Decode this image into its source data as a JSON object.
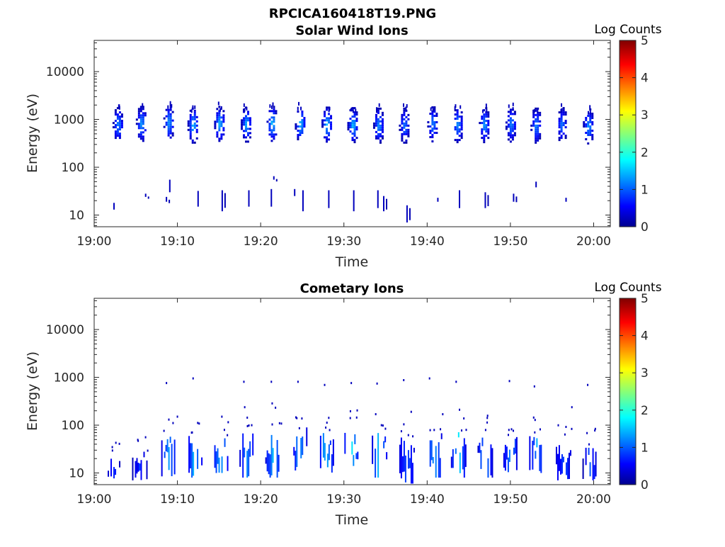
{
  "page": {
    "file_title": "RPCICA160418T19.PNG"
  },
  "colorbar": {
    "label": "Log Counts",
    "ticks": [
      "0",
      "1",
      "2",
      "3",
      "4",
      "5"
    ],
    "range": [
      0,
      5
    ],
    "colormap": "jet"
  },
  "chart_data": [
    {
      "type": "heatmap",
      "title": "Solar Wind Ions",
      "xlabel": "Time",
      "ylabel": "Energy (eV)",
      "x_ticks": [
        "19:00",
        "19:10",
        "19:20",
        "19:30",
        "19:40",
        "19:50",
        "20:00"
      ],
      "y_ticks": [
        "10",
        "100",
        "1000",
        "10000"
      ],
      "y_scale": "log",
      "xlim_minutes": [
        0,
        62
      ],
      "ylim_eV": [
        5.7,
        45000
      ],
      "colorbar_label": "Log Counts",
      "clim": [
        0,
        5
      ],
      "clusters": [
        {
          "t": 2.8,
          "e": 800,
          "value": 1.3
        },
        {
          "t": 5.6,
          "e": 850,
          "value": 1.4
        },
        {
          "t": 8.9,
          "e": 900,
          "value": 1.4
        },
        {
          "t": 11.8,
          "e": 780,
          "value": 1.6
        },
        {
          "t": 15.0,
          "e": 850,
          "value": 1.6
        },
        {
          "t": 18.2,
          "e": 820,
          "value": 1.5
        },
        {
          "t": 21.3,
          "e": 850,
          "value": 1.6
        },
        {
          "t": 24.7,
          "e": 830,
          "value": 1.6
        },
        {
          "t": 27.9,
          "e": 820,
          "value": 1.6
        },
        {
          "t": 31.0,
          "e": 800,
          "value": 1.6
        },
        {
          "t": 34.1,
          "e": 780,
          "value": 1.4
        },
        {
          "t": 37.2,
          "e": 780,
          "value": 1.2
        },
        {
          "t": 40.6,
          "e": 830,
          "value": 1.3
        },
        {
          "t": 43.6,
          "e": 800,
          "value": 1.4
        },
        {
          "t": 46.8,
          "e": 800,
          "value": 1.4
        },
        {
          "t": 50.0,
          "e": 820,
          "value": 1.3
        },
        {
          "t": 53.0,
          "e": 780,
          "value": 1.3
        },
        {
          "t": 56.1,
          "e": 800,
          "value": 1.2
        },
        {
          "t": 59.3,
          "e": 750,
          "value": 1.4
        }
      ],
      "low_energy_streaks": [
        {
          "t": 2.3,
          "e1": 13,
          "e2": 18
        },
        {
          "t": 6.1,
          "e1": 24,
          "e2": 28
        },
        {
          "t": 8.6,
          "e1": 19,
          "e2": 24
        },
        {
          "t": 9.0,
          "e1": 30,
          "e2": 55
        },
        {
          "t": 12.4,
          "e1": 15,
          "e2": 32
        },
        {
          "t": 15.3,
          "e1": 12,
          "e2": 33
        },
        {
          "t": 18.5,
          "e1": 15,
          "e2": 33
        },
        {
          "t": 21.2,
          "e1": 15,
          "e2": 35
        },
        {
          "t": 21.5,
          "e1": 55,
          "e2": 65
        },
        {
          "t": 24.0,
          "e1": 25,
          "e2": 35
        },
        {
          "t": 25.0,
          "e1": 12,
          "e2": 33
        },
        {
          "t": 28.1,
          "e1": 14,
          "e2": 33
        },
        {
          "t": 31.1,
          "e1": 12,
          "e2": 33
        },
        {
          "t": 34.0,
          "e1": 14,
          "e2": 33
        },
        {
          "t": 34.7,
          "e1": 12,
          "e2": 25
        },
        {
          "t": 37.5,
          "e1": 7,
          "e2": 16
        },
        {
          "t": 41.2,
          "e1": 19,
          "e2": 23
        },
        {
          "t": 43.8,
          "e1": 14,
          "e2": 33
        },
        {
          "t": 46.9,
          "e1": 14,
          "e2": 30
        },
        {
          "t": 50.3,
          "e1": 19,
          "e2": 28
        },
        {
          "t": 53.0,
          "e1": 38,
          "e2": 50
        },
        {
          "t": 56.6,
          "e1": 19,
          "e2": 23
        }
      ]
    },
    {
      "type": "heatmap",
      "title": "Cometary Ions",
      "xlabel": "Time",
      "ylabel": "Energy (eV)",
      "x_ticks": [
        "19:00",
        "19:10",
        "19:20",
        "19:30",
        "19:40",
        "19:50",
        "20:00"
      ],
      "y_ticks": [
        "10",
        "100",
        "1000",
        "10000"
      ],
      "y_scale": "log",
      "xlim_minutes": [
        0,
        62
      ],
      "ylim_eV": [
        5.7,
        45000
      ],
      "colorbar_label": "Log Counts",
      "clim": [
        0,
        5
      ],
      "bursts": [
        {
          "t": 2.3,
          "e1": 7,
          "e2": 22,
          "value": 0.6
        },
        {
          "t": 5.4,
          "e1": 7,
          "e2": 30,
          "value": 0.7
        },
        {
          "t": 8.9,
          "e1": 8,
          "e2": 70,
          "value": 1.2
        },
        {
          "t": 12.0,
          "e1": 8,
          "e2": 60,
          "value": 1.4
        },
        {
          "t": 15.1,
          "e1": 10,
          "e2": 60,
          "value": 1.3
        },
        {
          "t": 18.3,
          "e1": 8,
          "e2": 90,
          "value": 1.1
        },
        {
          "t": 21.4,
          "e1": 8,
          "e2": 90,
          "value": 1.3
        },
        {
          "t": 24.6,
          "e1": 8,
          "e2": 90,
          "value": 1.2
        },
        {
          "t": 27.8,
          "e1": 10,
          "e2": 80,
          "value": 1.5
        },
        {
          "t": 30.9,
          "e1": 10,
          "e2": 80,
          "value": 1.5
        },
        {
          "t": 34.2,
          "e1": 8,
          "e2": 70,
          "value": 1.4
        },
        {
          "t": 37.5,
          "e1": 6,
          "e2": 60,
          "value": 1.0
        },
        {
          "t": 40.8,
          "e1": 8,
          "e2": 70,
          "value": 1.2
        },
        {
          "t": 43.7,
          "e1": 8,
          "e2": 80,
          "value": 1.6
        },
        {
          "t": 46.9,
          "e1": 8,
          "e2": 60,
          "value": 1.3
        },
        {
          "t": 50.0,
          "e1": 8,
          "e2": 60,
          "value": 1.1
        },
        {
          "t": 53.1,
          "e1": 10,
          "e2": 60,
          "value": 1.2
        },
        {
          "t": 56.3,
          "e1": 7,
          "e2": 40,
          "value": 0.9
        },
        {
          "t": 59.5,
          "e1": 7,
          "e2": 40,
          "value": 0.8
        }
      ],
      "high_energy_points": [
        {
          "t": 8.6,
          "e": 800
        },
        {
          "t": 11.8,
          "e": 1000
        },
        {
          "t": 17.9,
          "e": 850
        },
        {
          "t": 21.2,
          "e": 850
        },
        {
          "t": 24.4,
          "e": 850
        },
        {
          "t": 27.6,
          "e": 730
        },
        {
          "t": 30.8,
          "e": 800
        },
        {
          "t": 33.9,
          "e": 780
        },
        {
          "t": 37.1,
          "e": 920
        },
        {
          "t": 40.2,
          "e": 1000
        },
        {
          "t": 43.4,
          "e": 850
        },
        {
          "t": 49.8,
          "e": 880
        },
        {
          "t": 52.8,
          "e": 680
        },
        {
          "t": 59.2,
          "e": 730
        },
        {
          "t": 18.0,
          "e": 250
        },
        {
          "t": 21.3,
          "e": 300
        },
        {
          "t": 38.0,
          "e": 200
        },
        {
          "t": 57.3,
          "e": 250
        }
      ]
    }
  ]
}
